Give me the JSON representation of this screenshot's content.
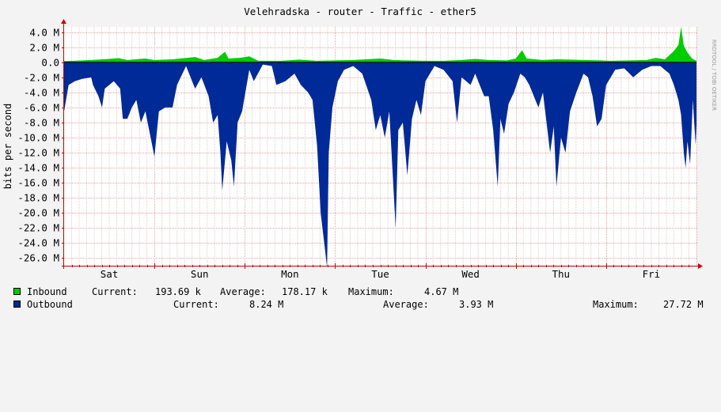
{
  "chart_data": {
    "type": "area",
    "title": "Velehradska - router - Traffic - ether5",
    "ylabel": "bits per second",
    "watermark": "RRDTOOL / TOBI OETIKER",
    "ylim": [
      -27.0,
      4.7
    ],
    "y_ticks": [
      {
        "value": 4.0,
        "label": "4.0 M"
      },
      {
        "value": 2.0,
        "label": "2.0 M"
      },
      {
        "value": 0.0,
        "label": "0.0"
      },
      {
        "value": -2.0,
        "label": "-2.0 M"
      },
      {
        "value": -4.0,
        "label": "-4.0 M"
      },
      {
        "value": -6.0,
        "label": "-6.0 M"
      },
      {
        "value": -8.0,
        "label": "-8.0 M"
      },
      {
        "value": -10.0,
        "label": "-10.0 M"
      },
      {
        "value": -12.0,
        "label": "-12.0 M"
      },
      {
        "value": -14.0,
        "label": "-14.0 M"
      },
      {
        "value": -16.0,
        "label": "-16.0 M"
      },
      {
        "value": -18.0,
        "label": "-18.0 M"
      },
      {
        "value": -20.0,
        "label": "-20.0 M"
      },
      {
        "value": -22.0,
        "label": "-22.0 M"
      },
      {
        "value": -24.0,
        "label": "-24.0 M"
      },
      {
        "value": -26.0,
        "label": "-26.0 M"
      }
    ],
    "x_range_days": [
      0,
      7
    ],
    "x_day_labels": [
      {
        "day": 0.5,
        "label": "Sat"
      },
      {
        "day": 1.5,
        "label": "Sun"
      },
      {
        "day": 2.5,
        "label": "Mon"
      },
      {
        "day": 3.5,
        "label": "Tue"
      },
      {
        "day": 4.5,
        "label": "Wed"
      },
      {
        "day": 5.5,
        "label": "Thu"
      },
      {
        "day": 6.5,
        "label": "Fri"
      }
    ],
    "series": [
      {
        "name": "Inbound",
        "color": "#00cc00",
        "points": [
          [
            0,
            0.15
          ],
          [
            0.1,
            0.2
          ],
          [
            0.3,
            0.3
          ],
          [
            0.5,
            0.45
          ],
          [
            0.6,
            0.55
          ],
          [
            0.7,
            0.3
          ],
          [
            0.9,
            0.5
          ],
          [
            1.0,
            0.3
          ],
          [
            1.2,
            0.4
          ],
          [
            1.45,
            0.7
          ],
          [
            1.55,
            0.3
          ],
          [
            1.7,
            0.6
          ],
          [
            1.78,
            1.4
          ],
          [
            1.82,
            0.5
          ],
          [
            1.95,
            0.6
          ],
          [
            2.05,
            0.8
          ],
          [
            2.15,
            0.2
          ],
          [
            2.4,
            0.2
          ],
          [
            2.6,
            0.35
          ],
          [
            2.8,
            0.2
          ],
          [
            3.0,
            0.25
          ],
          [
            3.2,
            0.3
          ],
          [
            3.5,
            0.5
          ],
          [
            3.65,
            0.3
          ],
          [
            3.8,
            0.25
          ],
          [
            4.0,
            0.2
          ],
          [
            4.2,
            0.2
          ],
          [
            4.4,
            0.3
          ],
          [
            4.55,
            0.45
          ],
          [
            4.7,
            0.3
          ],
          [
            4.9,
            0.25
          ],
          [
            5.0,
            0.5
          ],
          [
            5.07,
            1.6
          ],
          [
            5.12,
            0.5
          ],
          [
            5.3,
            0.3
          ],
          [
            5.45,
            0.4
          ],
          [
            5.6,
            0.35
          ],
          [
            5.75,
            0.3
          ],
          [
            5.95,
            0.25
          ],
          [
            6.05,
            0.2
          ],
          [
            6.25,
            0.25
          ],
          [
            6.45,
            0.3
          ],
          [
            6.55,
            0.6
          ],
          [
            6.65,
            0.4
          ],
          [
            6.75,
            1.5
          ],
          [
            6.8,
            2.3
          ],
          [
            6.83,
            4.67
          ],
          [
            6.86,
            2.2
          ],
          [
            6.9,
            1.3
          ],
          [
            6.95,
            0.5
          ],
          [
            7.0,
            0.2
          ]
        ]
      },
      {
        "name": "Outbound",
        "color": "#002a97",
        "points": [
          [
            0,
            -6.5
          ],
          [
            0.05,
            -3.0
          ],
          [
            0.12,
            -2.5
          ],
          [
            0.2,
            -2.2
          ],
          [
            0.3,
            -2.0
          ],
          [
            0.32,
            -3.0
          ],
          [
            0.38,
            -4.5
          ],
          [
            0.42,
            -6.0
          ],
          [
            0.45,
            -3.5
          ],
          [
            0.55,
            -2.5
          ],
          [
            0.62,
            -3.5
          ],
          [
            0.65,
            -7.5
          ],
          [
            0.7,
            -7.5
          ],
          [
            0.75,
            -6.0
          ],
          [
            0.8,
            -5.0
          ],
          [
            0.85,
            -8.0
          ],
          [
            0.9,
            -6.5
          ],
          [
            0.95,
            -9.5
          ],
          [
            1.0,
            -12.5
          ],
          [
            1.05,
            -6.5
          ],
          [
            1.12,
            -6.0
          ],
          [
            1.2,
            -6.0
          ],
          [
            1.25,
            -3.0
          ],
          [
            1.35,
            -0.5
          ],
          [
            1.45,
            -3.5
          ],
          [
            1.52,
            -2.0
          ],
          [
            1.6,
            -4.5
          ],
          [
            1.65,
            -8.0
          ],
          [
            1.7,
            -7.0
          ],
          [
            1.73,
            -12.0
          ],
          [
            1.75,
            -17.0
          ],
          [
            1.8,
            -10.5
          ],
          [
            1.85,
            -13.0
          ],
          [
            1.88,
            -16.5
          ],
          [
            1.92,
            -8.0
          ],
          [
            1.97,
            -6.5
          ],
          [
            2.05,
            -1.0
          ],
          [
            2.1,
            -2.5
          ],
          [
            2.2,
            -0.3
          ],
          [
            2.3,
            -0.5
          ],
          [
            2.35,
            -3.0
          ],
          [
            2.45,
            -2.5
          ],
          [
            2.55,
            -1.5
          ],
          [
            2.62,
            -3.0
          ],
          [
            2.7,
            -4.0
          ],
          [
            2.75,
            -5.0
          ],
          [
            2.8,
            -11.0
          ],
          [
            2.84,
            -20.0
          ],
          [
            2.86,
            -22.0
          ],
          [
            2.88,
            -24.0
          ],
          [
            2.91,
            -27.2
          ],
          [
            2.93,
            -12.0
          ],
          [
            2.97,
            -6.0
          ],
          [
            3.03,
            -2.5
          ],
          [
            3.1,
            -1.0
          ],
          [
            3.2,
            -0.5
          ],
          [
            3.3,
            -1.5
          ],
          [
            3.4,
            -5.0
          ],
          [
            3.45,
            -9.0
          ],
          [
            3.5,
            -7.0
          ],
          [
            3.55,
            -10.0
          ],
          [
            3.6,
            -6.5
          ],
          [
            3.67,
            -22.0
          ],
          [
            3.7,
            -9.0
          ],
          [
            3.75,
            -8.0
          ],
          [
            3.8,
            -15.0
          ],
          [
            3.85,
            -7.5
          ],
          [
            3.9,
            -5.0
          ],
          [
            3.95,
            -7.0
          ],
          [
            4.0,
            -2.5
          ],
          [
            4.1,
            -0.5
          ],
          [
            4.2,
            -1.0
          ],
          [
            4.3,
            -2.5
          ],
          [
            4.35,
            -8.0
          ],
          [
            4.4,
            -2.0
          ],
          [
            4.5,
            -3.0
          ],
          [
            4.55,
            -1.5
          ],
          [
            4.65,
            -4.5
          ],
          [
            4.7,
            -4.5
          ],
          [
            4.75,
            -9.0
          ],
          [
            4.8,
            -16.5
          ],
          [
            4.83,
            -7.5
          ],
          [
            4.87,
            -9.5
          ],
          [
            4.92,
            -5.5
          ],
          [
            4.98,
            -4.0
          ],
          [
            5.05,
            -1.5
          ],
          [
            5.1,
            -2.0
          ],
          [
            5.15,
            -3.0
          ],
          [
            5.2,
            -4.5
          ],
          [
            5.25,
            -6.0
          ],
          [
            5.3,
            -4.0
          ],
          [
            5.35,
            -9.0
          ],
          [
            5.38,
            -12.0
          ],
          [
            5.42,
            -8.5
          ],
          [
            5.45,
            -16.5
          ],
          [
            5.5,
            -10.0
          ],
          [
            5.55,
            -12.0
          ],
          [
            5.6,
            -6.5
          ],
          [
            5.67,
            -4.0
          ],
          [
            5.75,
            -1.5
          ],
          [
            5.8,
            -2.0
          ],
          [
            5.85,
            -4.5
          ],
          [
            5.9,
            -8.5
          ],
          [
            5.95,
            -7.5
          ],
          [
            6.0,
            -3.0
          ],
          [
            6.1,
            -1.0
          ],
          [
            6.2,
            -0.8
          ],
          [
            6.3,
            -2.0
          ],
          [
            6.4,
            -1.0
          ],
          [
            6.5,
            -0.5
          ],
          [
            6.6,
            -0.5
          ],
          [
            6.7,
            -1.5
          ],
          [
            6.75,
            -3.0
          ],
          [
            6.8,
            -5.0
          ],
          [
            6.83,
            -7.0
          ],
          [
            6.86,
            -12.0
          ],
          [
            6.88,
            -14.0
          ],
          [
            6.9,
            -10.5
          ],
          [
            6.93,
            -13.5
          ],
          [
            6.96,
            -5.0
          ],
          [
            6.99,
            -11.0
          ],
          [
            7.0,
            -8.24
          ]
        ]
      }
    ]
  },
  "legend": {
    "inbound": {
      "label": "Inbound",
      "current_label": "Current:",
      "current": "193.69 k",
      "average_label": "Average:",
      "average": "178.17 k",
      "maximum_label": "Maximum:",
      "maximum": "4.67 M"
    },
    "outbound": {
      "label": "Outbound",
      "current_label": "Current:",
      "current": "8.24 M",
      "average_label": "Average:",
      "average": "3.93 M",
      "maximum_label": "Maximum:",
      "maximum": "27.72 M"
    }
  }
}
